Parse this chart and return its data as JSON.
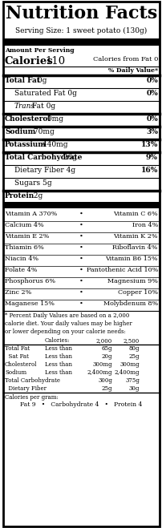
{
  "title": "Nutrition Facts",
  "serving_size": "Serving Size: 1 sweet potato (130g)",
  "amount_per_serving": "Amount Per Serving",
  "calories_from_fat": "Calories from Fat 0",
  "daily_value_header": "% Daily Value*",
  "main_nutrients": [
    {
      "label": "Total Fat",
      "amount": "0g",
      "pct": "0%",
      "bold": true,
      "indent": 0,
      "thick_top": true
    },
    {
      "label": "Saturated Fat",
      "amount": "0g",
      "pct": "0%",
      "bold": false,
      "indent": 1,
      "thick_top": false
    },
    {
      "label": "Trans",
      "label2": " Fat 0g",
      "amount": "",
      "pct": "",
      "bold": false,
      "indent": 1,
      "thick_top": false,
      "italic_first": true
    },
    {
      "label": "Cholesterol",
      "amount": "0mg",
      "pct": "0%",
      "bold": true,
      "indent": 0,
      "thick_top": true
    },
    {
      "label": "Sodium",
      "amount": "70mg",
      "pct": "3%",
      "bold": true,
      "indent": 0,
      "thick_top": true
    },
    {
      "label": "Potassium",
      "amount": "440mg",
      "pct": "13%",
      "bold": true,
      "indent": 0,
      "thick_top": true
    },
    {
      "label": "Total Carbohydrate",
      "amount": "26g",
      "pct": "9%",
      "bold": true,
      "indent": 0,
      "thick_top": true
    },
    {
      "label": "Dietary Fiber",
      "amount": "4g",
      "pct": "16%",
      "bold": false,
      "indent": 1,
      "thick_top": false
    },
    {
      "label": "Sugars",
      "amount": "5g",
      "pct": "",
      "bold": false,
      "indent": 1,
      "thick_top": false
    },
    {
      "label": "Protein",
      "amount": "2g",
      "pct": "",
      "bold": true,
      "indent": 0,
      "thick_top": true
    }
  ],
  "vitamins": [
    [
      "Vitamin A 370%",
      "Vitamin C 6%"
    ],
    [
      "Calcium 4%",
      "Iron 4%"
    ],
    [
      "Vitamin E 2%",
      "Vitamin K 2%"
    ],
    [
      "Thiamin 6%",
      "Riboflavin 4%"
    ],
    [
      "Niacin 4%",
      "Vitamin B6 15%"
    ],
    [
      "Folate 4%",
      "Pantothenic Acid 10%"
    ],
    [
      "Phosphorus 6%",
      "Magnesium 9%"
    ],
    [
      "Zinc 2%",
      "Copper 10%"
    ],
    [
      "Maganese 15%",
      "Molybdenum 8%"
    ]
  ],
  "footnote": "* Percent Daily Values are based on a 2,000\ncalorie diet. Your daily values may be higher\nor lower depending on your calorie needs:",
  "table_header": [
    "",
    "Calories:",
    "2,000",
    "2,500"
  ],
  "table_rows": [
    [
      "Total Fat",
      "Less than",
      "65g",
      "80g"
    ],
    [
      "  Sat Fat",
      "Less than",
      "20g",
      "25g"
    ],
    [
      "Cholesterol",
      "Less than",
      "300mg",
      "300mg"
    ],
    [
      "Sodium",
      "Less than",
      "2,400mg",
      "2,400mg"
    ],
    [
      "Total Carbohydrate",
      "",
      "300g",
      "375g"
    ],
    [
      "  Dietary Fiber",
      "",
      "25g",
      "30g"
    ]
  ],
  "calories_per_gram": "Calories per gram:",
  "cpg_values": "Fat 9   •   Carbohydrate 4   •   Protein 4",
  "bg_color": "#ffffff",
  "text_color": "#000000",
  "border_color": "#000000",
  "figw": 2.03,
  "figh": 6.59,
  "dpi": 100
}
